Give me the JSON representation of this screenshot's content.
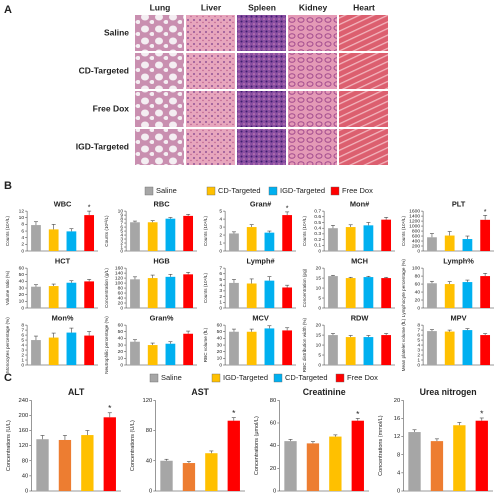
{
  "panel_labels": [
    "A",
    "B",
    "C"
  ],
  "histology": {
    "columns": [
      "Lung",
      "Liver",
      "Spleen",
      "Kidney",
      "Heart"
    ],
    "rows": [
      "Saline",
      "CD-Targeted",
      "Free Dox",
      "IGD-Targeted"
    ]
  },
  "legend_b": {
    "names": [
      "Saline",
      "CD-Targeted",
      "IGD-Targeted",
      "Free Dox"
    ],
    "colors": [
      "#a6a6a6",
      "#ffc000",
      "#00b0f0",
      "#ff0000"
    ]
  },
  "legend_c": {
    "names": [
      "Saline",
      "IGD-Targeted",
      "CD-Targeted",
      "Free Dox"
    ],
    "colors": [
      "#a6a6a6",
      "#ffc000",
      "#00b0f0",
      "#ff0000"
    ],
    "bar_colors": [
      "#a6a6a6",
      "#ed7d31",
      "#ffc000",
      "#ff0000"
    ]
  },
  "chart_data": [
    {
      "type": "bar",
      "title": "WBC",
      "ylabel": "Counts (10⁹/L)",
      "values": [
        7.8,
        6.5,
        5.9,
        10.8
      ],
      "errors": [
        1,
        1.5,
        0.8,
        1.2
      ],
      "stars": [
        null,
        null,
        null,
        "*"
      ],
      "ylim": [
        0,
        12
      ],
      "yticks": [
        0,
        2,
        4,
        6,
        8,
        10,
        12
      ]
    },
    {
      "type": "bar",
      "title": "RBC",
      "ylabel": "Counts (10¹²/L)",
      "values": [
        7.2,
        7.2,
        8.1,
        8.8
      ],
      "errors": [
        0.3,
        0.4,
        0.3,
        0.4
      ],
      "stars": [
        null,
        null,
        null,
        null
      ],
      "ylim": [
        0,
        10
      ],
      "yticks": [
        0,
        1,
        2,
        3,
        4,
        5,
        6,
        7,
        8,
        9,
        10
      ]
    },
    {
      "type": "bar",
      "title": "Gran#",
      "ylabel": "Counts (10⁹/L)",
      "values": [
        2.2,
        3,
        2.3,
        4.5
      ],
      "errors": [
        0.2,
        0.3,
        0.2,
        0.4
      ],
      "stars": [
        null,
        null,
        null,
        "*"
      ],
      "ylim": [
        0,
        5
      ],
      "yticks": [
        0,
        1,
        2,
        3,
        4,
        5
      ]
    },
    {
      "type": "bar",
      "title": "Mon#",
      "ylabel": "Counts (10⁹/L)",
      "values": [
        0.4,
        0.42,
        0.45,
        0.55
      ],
      "errors": [
        0.05,
        0.04,
        0.05,
        0.04
      ],
      "stars": [
        null,
        null,
        null,
        null
      ],
      "ylim": [
        0,
        0.7
      ],
      "yticks": [
        0,
        0.1,
        0.2,
        0.3,
        0.4,
        0.5,
        0.6,
        0.7
      ]
    },
    {
      "type": "bar",
      "title": "PLT",
      "ylabel": "Counts (10⁹/L)",
      "values": [
        550,
        620,
        480,
        1250
      ],
      "errors": [
        150,
        160,
        120,
        180
      ],
      "stars": [
        null,
        null,
        null,
        "*"
      ],
      "ylim": [
        0,
        1600
      ],
      "yticks": [
        0,
        200,
        400,
        600,
        800,
        1000,
        1200,
        1400,
        1600
      ]
    },
    {
      "type": "bar",
      "title": "HCT",
      "ylabel": "Volume ratio (%)",
      "values": [
        32,
        33,
        38,
        40
      ],
      "errors": [
        3,
        3,
        3,
        3
      ],
      "stars": [
        null,
        null,
        null,
        null
      ],
      "ylim": [
        0,
        60
      ],
      "yticks": [
        0,
        10,
        20,
        30,
        40,
        50,
        60
      ]
    },
    {
      "type": "bar",
      "title": "HGB",
      "ylabel": "Concentration (g/L)",
      "values": [
        115,
        120,
        125,
        135
      ],
      "errors": [
        10,
        12,
        10,
        8
      ],
      "stars": [
        null,
        null,
        null,
        null
      ],
      "ylim": [
        0,
        160
      ],
      "yticks": [
        0,
        20,
        40,
        60,
        80,
        100,
        120,
        140,
        160
      ]
    },
    {
      "type": "bar",
      "title": "Lymph#",
      "ylabel": "Counts (10⁹/L)",
      "values": [
        4.4,
        4.3,
        4.8,
        3.6
      ],
      "errors": [
        0.6,
        0.8,
        0.7,
        0.4
      ],
      "stars": [
        null,
        null,
        null,
        null
      ],
      "ylim": [
        0,
        7
      ],
      "yticks": [
        0,
        1,
        2,
        3,
        4,
        5,
        6,
        7
      ]
    },
    {
      "type": "bar",
      "title": "MCH",
      "ylabel": "Concentration (pg)",
      "values": [
        16,
        15,
        15.5,
        15
      ],
      "errors": [
        0.4,
        0.4,
        0.4,
        0.4
      ],
      "stars": [
        null,
        null,
        null,
        null
      ],
      "ylim": [
        0,
        20
      ],
      "yticks": [
        0,
        5,
        10,
        15,
        20
      ]
    },
    {
      "type": "bar",
      "title": "Lymph%",
      "ylabel": "Lymphocyte percentage (%)",
      "values": [
        62,
        60,
        65,
        80
      ],
      "errors": [
        5,
        6,
        5,
        7
      ],
      "stars": [
        null,
        null,
        null,
        null
      ],
      "ylim": [
        0,
        100
      ],
      "yticks": [
        0,
        20,
        40,
        60,
        80,
        100
      ]
    },
    {
      "type": "bar",
      "title": "Mon%",
      "ylabel": "Monocytes percentage (%)",
      "values": [
        5,
        5.5,
        6.5,
        5.9
      ],
      "errors": [
        0.8,
        0.9,
        0.9,
        0.8
      ],
      "stars": [
        null,
        null,
        null,
        null
      ],
      "ylim": [
        0,
        8
      ],
      "yticks": [
        0,
        1,
        2,
        3,
        4,
        5,
        6,
        7,
        8
      ]
    },
    {
      "type": "bar",
      "title": "Gran%",
      "ylabel": "Neutrophilic percentage (%)",
      "values": [
        35,
        30,
        32,
        47
      ],
      "errors": [
        3,
        3,
        3,
        4
      ],
      "stars": [
        null,
        null,
        null,
        null
      ],
      "ylim": [
        0,
        60
      ],
      "yticks": [
        0,
        10,
        20,
        30,
        40,
        50,
        60
      ]
    },
    {
      "type": "bar",
      "title": "MCV",
      "ylabel": "RBC volume (fL)",
      "values": [
        50,
        50,
        55,
        52
      ],
      "errors": [
        4,
        4,
        4,
        4
      ],
      "stars": [
        null,
        null,
        null,
        null
      ],
      "ylim": [
        0,
        60
      ],
      "yticks": [
        0,
        10,
        20,
        30,
        40,
        50,
        60
      ]
    },
    {
      "type": "bar",
      "title": "RDW",
      "ylabel": "RBC distribution width (%)",
      "values": [
        15,
        14,
        14,
        15
      ],
      "errors": [
        0.8,
        0.8,
        0.8,
        0.8
      ],
      "stars": [
        null,
        null,
        null,
        null
      ],
      "ylim": [
        0,
        20
      ],
      "yticks": [
        0,
        5,
        10,
        15,
        20
      ]
    },
    {
      "type": "bar",
      "title": "MPV",
      "ylabel": "Mean platelet volume (fL)",
      "values": [
        6.8,
        6.7,
        7,
        6
      ],
      "errors": [
        0.3,
        0.3,
        0.3,
        0.3
      ],
      "stars": [
        null,
        null,
        null,
        null
      ],
      "ylim": [
        0,
        8
      ],
      "yticks": [
        0,
        1,
        2,
        3,
        4,
        5,
        6,
        7,
        8
      ]
    },
    {
      "type": "bar",
      "title": "ALT",
      "ylabel": "Concentrations (U/L)",
      "values": [
        137,
        135,
        148,
        195
      ],
      "errors": [
        10,
        12,
        12,
        12
      ],
      "stars": [
        null,
        null,
        null,
        "*"
      ],
      "ylim": [
        0,
        240
      ],
      "yticks": [
        0,
        40,
        80,
        120,
        160,
        200,
        240
      ]
    },
    {
      "type": "bar",
      "title": "AST",
      "ylabel": "Concentrations (U/L)",
      "values": [
        40,
        37,
        50,
        93
      ],
      "errors": [
        2,
        2,
        3,
        4
      ],
      "stars": [
        null,
        null,
        null,
        "*"
      ],
      "ylim": [
        0,
        120
      ],
      "yticks": [
        0,
        40,
        80,
        120
      ]
    },
    {
      "type": "bar",
      "title": "Creatinine",
      "ylabel": "Concentrations (μmol/L)",
      "values": [
        44,
        42,
        48,
        62
      ],
      "errors": [
        1.5,
        1.5,
        1.5,
        2
      ],
      "stars": [
        null,
        null,
        null,
        "*"
      ],
      "ylim": [
        0,
        80
      ],
      "yticks": [
        0,
        20,
        40,
        60,
        80
      ]
    },
    {
      "type": "bar",
      "title": "Urea nitrogen",
      "ylabel": "Concentrations (mmol/L)",
      "values": [
        13,
        11,
        14.5,
        15.5
      ],
      "errors": [
        0.5,
        0.5,
        0.6,
        0.6
      ],
      "stars": [
        null,
        null,
        null,
        "*"
      ],
      "ylim": [
        0,
        20
      ],
      "yticks": [
        0,
        4,
        8,
        12,
        16,
        20
      ]
    }
  ]
}
